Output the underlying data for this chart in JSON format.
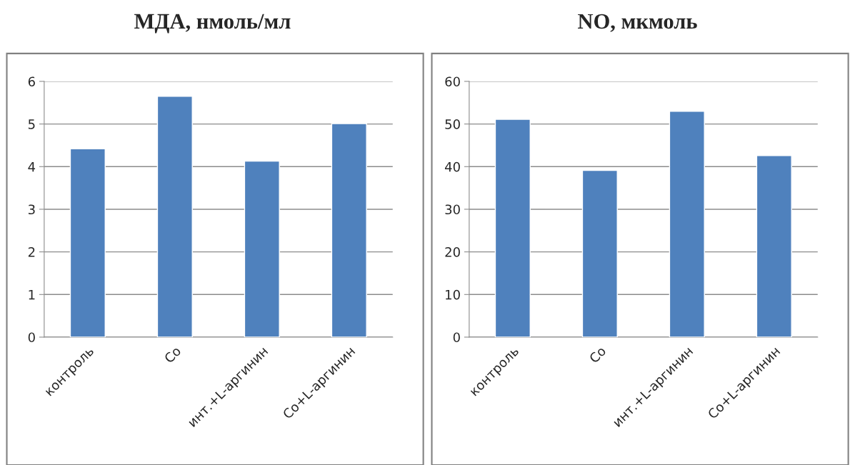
{
  "chart_data": [
    {
      "type": "bar",
      "title": "МДА, нмоль/мл",
      "categories": [
        "контроль",
        "Co",
        "инт.+L-аргинин",
        "Co+L-аргинин"
      ],
      "values": [
        4.42,
        5.65,
        4.13,
        5.01
      ],
      "color": "#4f81bd",
      "ylim": [
        0,
        6
      ],
      "yticks": [
        0,
        1,
        2,
        3,
        4,
        5,
        6
      ],
      "grid": "y"
    },
    {
      "type": "bar",
      "title": "NO, мкмоль",
      "categories": [
        "контроль",
        "Co",
        "инт.+L-аргинин",
        "Co+L-аргинин"
      ],
      "values": [
        51.1,
        39.1,
        53.0,
        42.6
      ],
      "color": "#4f81bd",
      "ylim": [
        0,
        60
      ],
      "yticks": [
        0,
        10,
        20,
        30,
        40,
        50,
        60
      ],
      "grid": "y"
    }
  ]
}
